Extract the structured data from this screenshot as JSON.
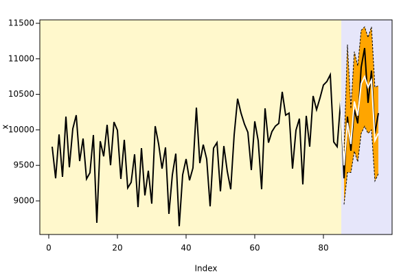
{
  "chart_data": {
    "type": "line",
    "xlabel": "Index",
    "ylabel": "x",
    "xlim": [
      -2.6,
      100
    ],
    "ylim": [
      8527,
      11548
    ],
    "xticks": [
      0,
      20,
      40,
      60,
      80
    ],
    "yticks": [
      9000,
      9500,
      10000,
      10500,
      11000,
      11500
    ],
    "regions": [
      {
        "to": 85.2,
        "color": "#FFF8CC"
      },
      {
        "from": 85.2,
        "color": "#E6E6FA"
      }
    ],
    "band": {
      "color": "#FFA500",
      "x": [
        86,
        87,
        88,
        89,
        90,
        91,
        92,
        93,
        94,
        95,
        96
      ],
      "upper": [
        9700,
        11200,
        10300,
        11100,
        10900,
        11400,
        11450,
        11300,
        11450,
        10600,
        10620
      ],
      "lower": [
        8950,
        9400,
        9400,
        9700,
        9550,
        9950,
        10050,
        9950,
        10000,
        9280,
        9380
      ]
    },
    "series": [
      {
        "color": "#000000",
        "x": [
          1,
          2,
          3,
          4,
          5,
          6,
          7,
          8,
          9,
          10,
          11,
          12,
          13,
          14,
          15,
          16,
          17,
          18,
          19,
          20,
          21,
          22,
          23,
          24,
          25,
          26,
          27,
          28,
          29,
          30,
          31,
          32,
          33,
          34,
          35,
          36,
          37,
          38,
          39,
          40,
          41,
          42,
          43,
          44,
          45,
          46,
          47,
          48,
          49,
          50,
          51,
          52,
          53,
          54,
          55,
          56,
          57,
          58,
          59,
          60,
          61,
          62,
          63,
          64,
          65,
          66,
          67,
          68,
          69,
          70,
          71,
          72,
          73,
          74,
          75,
          76,
          77,
          78,
          79,
          80,
          81,
          82,
          83,
          84,
          85,
          86,
          87,
          88,
          89,
          90,
          91,
          92,
          93,
          94,
          95,
          96
        ],
        "values": [
          9763,
          9318,
          9936,
          9338,
          10187,
          9473,
          10014,
          10207,
          9560,
          9878,
          9309,
          9396,
          9927,
          8691,
          9840,
          9627,
          10071,
          9502,
          10110,
          9994,
          9309,
          9859,
          9183,
          9261,
          9656,
          8913,
          9743,
          9077,
          9425,
          8961,
          10052,
          9801,
          9454,
          9753,
          8817,
          9367,
          9666,
          8643,
          9367,
          9589,
          9290,
          9463,
          10313,
          9531,
          9792,
          9589,
          8923,
          9743,
          9820,
          9135,
          9772,
          9415,
          9164,
          9927,
          10438,
          10236,
          10081,
          9965,
          9434,
          10120,
          9849,
          9164,
          10303,
          9820,
          9975,
          10052,
          10091,
          10535,
          10207,
          10236,
          9454,
          9994,
          10158,
          9232,
          10197,
          9763,
          10477,
          10284,
          10448,
          10631,
          10680,
          10776,
          9830,
          9763,
          10400,
          9318,
          10187,
          9705,
          10284,
          10091,
          10882,
          11152,
          10380,
          10834,
          9946,
          10236
        ]
      },
      {
        "color": "#FFFFFF",
        "x": [
          85,
          86,
          87,
          88,
          89,
          90,
          91,
          92,
          93,
          94,
          95,
          96
        ],
        "values": [
          10400,
          9500,
          10100,
          9800,
          10400,
          10200,
          10650,
          10750,
          10600,
          10700,
          9850,
          9950
        ]
      }
    ]
  }
}
